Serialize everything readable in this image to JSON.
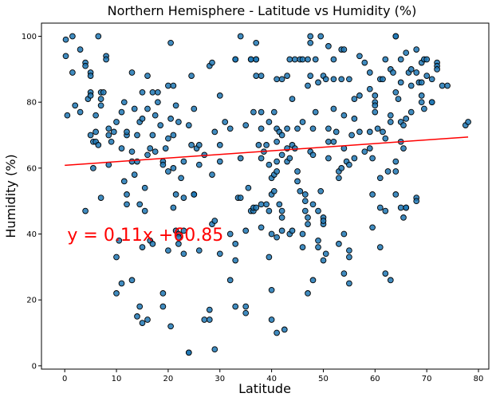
{
  "chart_data": {
    "type": "scatter",
    "title": "Northern Hemisphere - Latitude vs Humidity (%)",
    "xlabel": "Latitude",
    "ylabel": "Humidity (%)",
    "xlim": [
      -4.5,
      82
    ],
    "ylim": [
      -1,
      104
    ],
    "xticks": [
      0,
      10,
      20,
      30,
      40,
      50,
      60,
      70,
      80
    ],
    "yticks": [
      0,
      20,
      40,
      60,
      80,
      100
    ],
    "grid": false,
    "marker_color": "#1f77b4",
    "marker_edge_color": "#000000",
    "regression": {
      "equation": "y = 0.11x +60.85",
      "slope": 0.11,
      "intercept": 60.85,
      "x_range": [
        0,
        78
      ],
      "color": "#ff0000",
      "label_x": 0.5,
      "label_y": 38
    },
    "points": [
      [
        0.2,
        99
      ],
      [
        0.2,
        94
      ],
      [
        0.5,
        76
      ],
      [
        1.5,
        89
      ],
      [
        1.5,
        100
      ],
      [
        2,
        79
      ],
      [
        3,
        96
      ],
      [
        3,
        77
      ],
      [
        4,
        92
      ],
      [
        4,
        91
      ],
      [
        4,
        47
      ],
      [
        4.5,
        81
      ],
      [
        5,
        89
      ],
      [
        5,
        83
      ],
      [
        5,
        88
      ],
      [
        5,
        82
      ],
      [
        5,
        70
      ],
      [
        5.5,
        68
      ],
      [
        5.5,
        60
      ],
      [
        6,
        68
      ],
      [
        6,
        76
      ],
      [
        6,
        71
      ],
      [
        6.5,
        100
      ],
      [
        6.5,
        67
      ],
      [
        7,
        83
      ],
      [
        7,
        51
      ],
      [
        7,
        79
      ],
      [
        7,
        81
      ],
      [
        7.5,
        83
      ],
      [
        8,
        94
      ],
      [
        8,
        93
      ],
      [
        8.5,
        70
      ],
      [
        8.5,
        72
      ],
      [
        8.5,
        61
      ],
      [
        9,
        68
      ],
      [
        9.5,
        71
      ],
      [
        10,
        22
      ],
      [
        10,
        74
      ],
      [
        10,
        33
      ],
      [
        10.5,
        38
      ],
      [
        11,
        66
      ],
      [
        11,
        77
      ],
      [
        11,
        25
      ],
      [
        11.5,
        80
      ],
      [
        11.5,
        56
      ],
      [
        12,
        70
      ],
      [
        12,
        71
      ],
      [
        12,
        52
      ],
      [
        12,
        49
      ],
      [
        13,
        89
      ],
      [
        13,
        26
      ],
      [
        13,
        62
      ],
      [
        13,
        65
      ],
      [
        13.5,
        78
      ],
      [
        13.5,
        58
      ],
      [
        14,
        15
      ],
      [
        14,
        62
      ],
      [
        14,
        70
      ],
      [
        14.5,
        74
      ],
      [
        14.5,
        18
      ],
      [
        14.5,
        49
      ],
      [
        15,
        83
      ],
      [
        15,
        75
      ],
      [
        15,
        13
      ],
      [
        15,
        36
      ],
      [
        15.5,
        47
      ],
      [
        15.5,
        54
      ],
      [
        16,
        64
      ],
      [
        16,
        78
      ],
      [
        16,
        14
      ],
      [
        16,
        88
      ],
      [
        16.5,
        66
      ],
      [
        16.5,
        38
      ],
      [
        17,
        70
      ],
      [
        17,
        37
      ],
      [
        17,
        83
      ],
      [
        17.5,
        76
      ],
      [
        17.5,
        65
      ],
      [
        18,
        80
      ],
      [
        18,
        83
      ],
      [
        18.5,
        73
      ],
      [
        19,
        62
      ],
      [
        19,
        18
      ],
      [
        19,
        22
      ],
      [
        19,
        61
      ],
      [
        19.5,
        66
      ],
      [
        20,
        35
      ],
      [
        20,
        59
      ],
      [
        20,
        69
      ],
      [
        20,
        85
      ],
      [
        20.5,
        75
      ],
      [
        20.5,
        12
      ],
      [
        20.5,
        98
      ],
      [
        21,
        85
      ],
      [
        21,
        60
      ],
      [
        21,
        70
      ],
      [
        21,
        48
      ],
      [
        21.5,
        79
      ],
      [
        21.5,
        41
      ],
      [
        21.5,
        52
      ],
      [
        22,
        74
      ],
      [
        22,
        37
      ],
      [
        22,
        40
      ],
      [
        22,
        39
      ],
      [
        22.5,
        57
      ],
      [
        23,
        62
      ],
      [
        23,
        41
      ],
      [
        23,
        51
      ],
      [
        23,
        34
      ],
      [
        24,
        4
      ],
      [
        24,
        4
      ],
      [
        24,
        73
      ],
      [
        24.5,
        67
      ],
      [
        24.5,
        88
      ],
      [
        25,
        52
      ],
      [
        25,
        78
      ],
      [
        25,
        52
      ],
      [
        25.5,
        66
      ],
      [
        26,
        35
      ],
      [
        26,
        61
      ],
      [
        26,
        67
      ],
      [
        27,
        14
      ],
      [
        27,
        64
      ],
      [
        28,
        17
      ],
      [
        28,
        91
      ],
      [
        28,
        14
      ],
      [
        28.5,
        92
      ],
      [
        28.5,
        43
      ],
      [
        28.5,
        58
      ],
      [
        29,
        44
      ],
      [
        29,
        5
      ],
      [
        29,
        71
      ],
      [
        30,
        82
      ],
      [
        30,
        34
      ],
      [
        30,
        62
      ],
      [
        30,
        67
      ],
      [
        31,
        74
      ],
      [
        32,
        26
      ],
      [
        32,
        40
      ],
      [
        32,
        72
      ],
      [
        33,
        93
      ],
      [
        33,
        93
      ],
      [
        33,
        32
      ],
      [
        33,
        18
      ],
      [
        33,
        37
      ],
      [
        33.5,
        51
      ],
      [
        34,
        100
      ],
      [
        34,
        51
      ],
      [
        34,
        63
      ],
      [
        35,
        73
      ],
      [
        35,
        18
      ],
      [
        35,
        16
      ],
      [
        35,
        41
      ],
      [
        35.5,
        54
      ],
      [
        36,
        93
      ],
      [
        36,
        93
      ],
      [
        36,
        47
      ],
      [
        36.5,
        47
      ],
      [
        36.5,
        48
      ],
      [
        36.5,
        77
      ],
      [
        37,
        93
      ],
      [
        37,
        98
      ],
      [
        37,
        88
      ],
      [
        37,
        93
      ],
      [
        37,
        48
      ],
      [
        37.5,
        67
      ],
      [
        38,
        88
      ],
      [
        38,
        72
      ],
      [
        38,
        42
      ],
      [
        38,
        49
      ],
      [
        38,
        77
      ],
      [
        38,
        63
      ],
      [
        38.5,
        65
      ],
      [
        39,
        67
      ],
      [
        39,
        49
      ],
      [
        39.5,
        74
      ],
      [
        39.5,
        61
      ],
      [
        39.5,
        47
      ],
      [
        39.5,
        33
      ],
      [
        40,
        57
      ],
      [
        40,
        40
      ],
      [
        40,
        23
      ],
      [
        40,
        14
      ],
      [
        40,
        52
      ],
      [
        40.5,
        77
      ],
      [
        40.5,
        58
      ],
      [
        40.5,
        53
      ],
      [
        41,
        68
      ],
      [
        41,
        87
      ],
      [
        41,
        62
      ],
      [
        41,
        72
      ],
      [
        41,
        39
      ],
      [
        41,
        10
      ],
      [
        41,
        59
      ],
      [
        41.5,
        71
      ],
      [
        41.5,
        49
      ],
      [
        42,
        45
      ],
      [
        42,
        41
      ],
      [
        42,
        64
      ],
      [
        42,
        70
      ],
      [
        42,
        87
      ],
      [
        42,
        47
      ],
      [
        42.5,
        11
      ],
      [
        43,
        88
      ],
      [
        43,
        66
      ],
      [
        43,
        72
      ],
      [
        43,
        62
      ],
      [
        43.5,
        93
      ],
      [
        43.5,
        63
      ],
      [
        43.5,
        40
      ],
      [
        44,
        81
      ],
      [
        44,
        67
      ],
      [
        44,
        41
      ],
      [
        44.5,
        93
      ],
      [
        44.5,
        66
      ],
      [
        45,
        56
      ],
      [
        45,
        59
      ],
      [
        45,
        72
      ],
      [
        45.5,
        93
      ],
      [
        45.5,
        53
      ],
      [
        46,
        40
      ],
      [
        46,
        93
      ],
      [
        46,
        36
      ],
      [
        46,
        74
      ],
      [
        46.5,
        52
      ],
      [
        46.5,
        47
      ],
      [
        46.5,
        50
      ],
      [
        47,
        93
      ],
      [
        47,
        85
      ],
      [
        47,
        22
      ],
      [
        47,
        45
      ],
      [
        47,
        43
      ],
      [
        47.5,
        100
      ],
      [
        47.5,
        98
      ],
      [
        47.5,
        88
      ],
      [
        47.5,
        65
      ],
      [
        48,
        26
      ],
      [
        48,
        72
      ],
      [
        48,
        49
      ],
      [
        48,
        64
      ],
      [
        48.5,
        77
      ],
      [
        48.5,
        93
      ],
      [
        49,
        38
      ],
      [
        49,
        47
      ],
      [
        49,
        36
      ],
      [
        49,
        86
      ],
      [
        49.5,
        100
      ],
      [
        49.5,
        53
      ],
      [
        50,
        45
      ],
      [
        50,
        88
      ],
      [
        50,
        43
      ],
      [
        50,
        44
      ],
      [
        50,
        32
      ],
      [
        50.5,
        34
      ],
      [
        50.5,
        87
      ],
      [
        51,
        97
      ],
      [
        51,
        63
      ],
      [
        51,
        72
      ],
      [
        51,
        68
      ],
      [
        52,
        87
      ],
      [
        52,
        93
      ],
      [
        52,
        68
      ],
      [
        52,
        78
      ],
      [
        52.5,
        71
      ],
      [
        53,
        59
      ],
      [
        53,
        57
      ],
      [
        53,
        37
      ],
      [
        53.5,
        60
      ],
      [
        53.5,
        87
      ],
      [
        53.5,
        96
      ],
      [
        54,
        96
      ],
      [
        54,
        28
      ],
      [
        54,
        40
      ],
      [
        54,
        66
      ],
      [
        54,
        76
      ],
      [
        54.5,
        62
      ],
      [
        55,
        25
      ],
      [
        55,
        35
      ],
      [
        55,
        61
      ],
      [
        55,
        33
      ],
      [
        55,
        87
      ],
      [
        55.5,
        70
      ],
      [
        56,
        81
      ],
      [
        56,
        75
      ],
      [
        56,
        63
      ],
      [
        57,
        94
      ],
      [
        57,
        71
      ],
      [
        57,
        82
      ],
      [
        58,
        65
      ],
      [
        58,
        92
      ],
      [
        59,
        89
      ],
      [
        59,
        84
      ],
      [
        59,
        71
      ],
      [
        59,
        66
      ],
      [
        59.5,
        42
      ],
      [
        59.5,
        52
      ],
      [
        59.5,
        63
      ],
      [
        60,
        80
      ],
      [
        60,
        79
      ],
      [
        60,
        77
      ],
      [
        60,
        82
      ],
      [
        60.5,
        72
      ],
      [
        61,
        57
      ],
      [
        61,
        36
      ],
      [
        61,
        87
      ],
      [
        61,
        48
      ],
      [
        61.5,
        87
      ],
      [
        61.5,
        71
      ],
      [
        62,
        69
      ],
      [
        62,
        47
      ],
      [
        62,
        28
      ],
      [
        62,
        93
      ],
      [
        62.5,
        59
      ],
      [
        63,
        90
      ],
      [
        63,
        76
      ],
      [
        63,
        26
      ],
      [
        63,
        74
      ],
      [
        63.5,
        89
      ],
      [
        64,
        100
      ],
      [
        64,
        100
      ],
      [
        64,
        62
      ],
      [
        64,
        83
      ],
      [
        64,
        59
      ],
      [
        64,
        52
      ],
      [
        64.5,
        81
      ],
      [
        65,
        74
      ],
      [
        65,
        86
      ],
      [
        65,
        93
      ],
      [
        65,
        48
      ],
      [
        65,
        68
      ],
      [
        65.5,
        73
      ],
      [
        65.5,
        45
      ],
      [
        65.5,
        66
      ],
      [
        66,
        95
      ],
      [
        66,
        48
      ],
      [
        66,
        48
      ],
      [
        66,
        75
      ],
      [
        66.5,
        89
      ],
      [
        67,
        85
      ],
      [
        67,
        77
      ],
      [
        67,
        90
      ],
      [
        68,
        89
      ],
      [
        68,
        51
      ],
      [
        68,
        50
      ],
      [
        68,
        96
      ],
      [
        68.5,
        86
      ],
      [
        69,
        82
      ],
      [
        69,
        80
      ],
      [
        69,
        92
      ],
      [
        69,
        86
      ],
      [
        69.5,
        93
      ],
      [
        69.5,
        78
      ],
      [
        70,
        93
      ],
      [
        70,
        88
      ],
      [
        71,
        87
      ],
      [
        71,
        80
      ],
      [
        71,
        80
      ],
      [
        72,
        92
      ],
      [
        72,
        91
      ],
      [
        72,
        90
      ],
      [
        73,
        85
      ],
      [
        74,
        85
      ],
      [
        77.5,
        73
      ],
      [
        78,
        74
      ]
    ]
  }
}
